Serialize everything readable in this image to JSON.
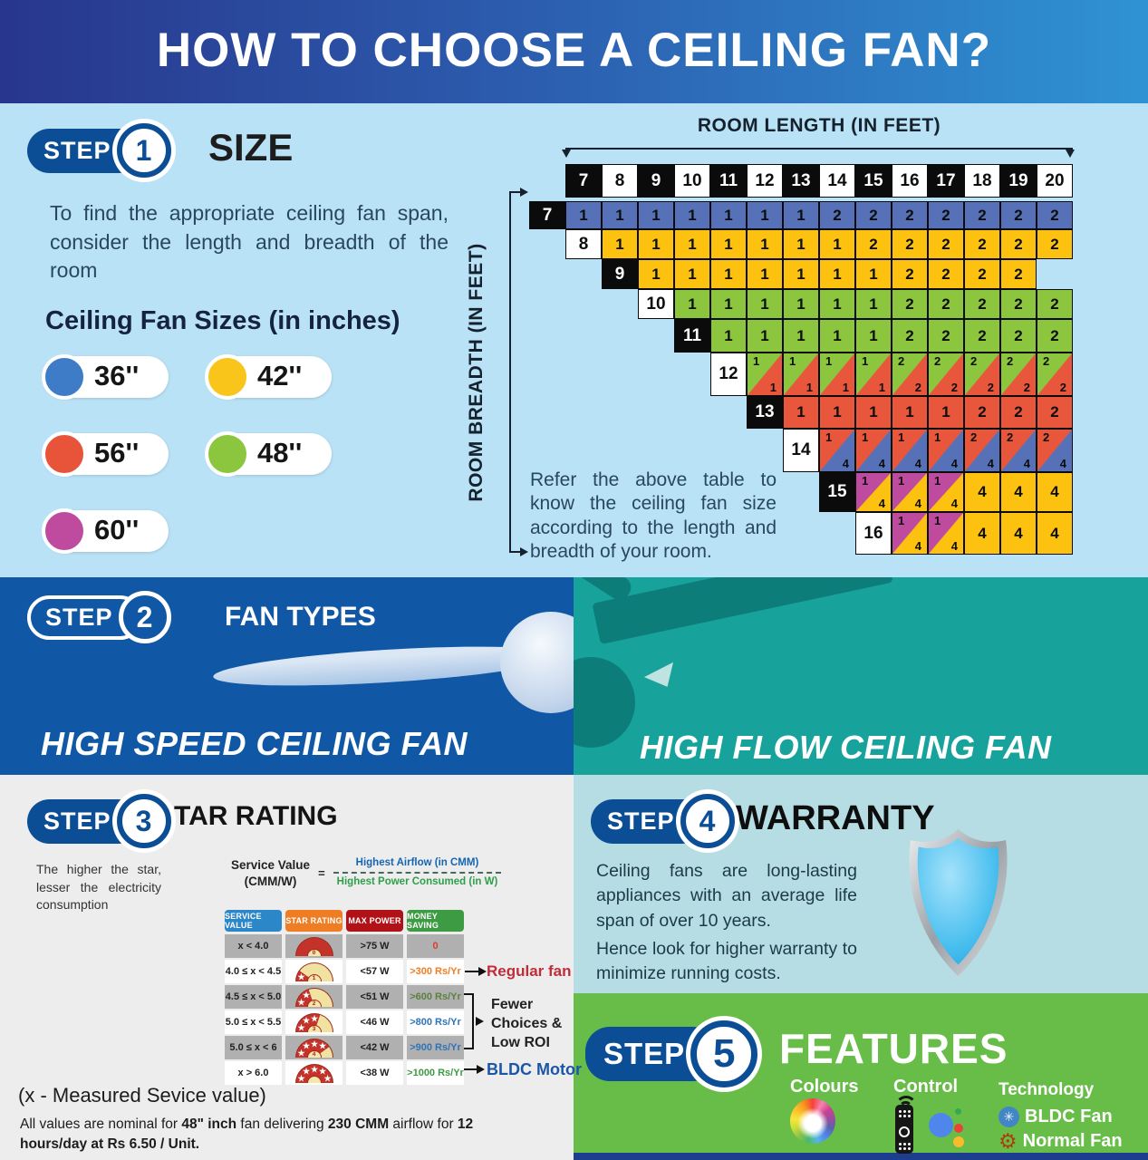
{
  "title": "HOW TO CHOOSE A CEILING FAN?",
  "palette": {
    "header_grad_left": "#28368c",
    "header_grad_right": "#2f93d3",
    "step1_bg": "#b9e2f6",
    "step2_left_bg": "#1057a5",
    "step2_right_bg": "#17a29b",
    "step3_bg": "#ededed",
    "step4_bg": "#b5dde3",
    "step5_bg": "#68bd48",
    "badge_blue": "#0c4e96",
    "bottom_strip": "#1d3e8f"
  },
  "fan_colors": {
    "b": "#5771b8",
    "y": "#fdc20f",
    "g": "#8cc63f",
    "r": "#e8573c",
    "m": "#bf4b9f"
  },
  "step1": {
    "step_label": "STEP",
    "step_number": "1",
    "heading": "SIZE",
    "description": "To find the appropriate ceiling fan span, consider the length and breadth of the room",
    "legend_title": "Ceiling Fan Sizes (in inches)",
    "fan_sizes": [
      {
        "label": "36''",
        "color": "#3e7cc7"
      },
      {
        "label": "42''",
        "color": "#f9c51b"
      },
      {
        "label": "56''",
        "color": "#e8543a"
      },
      {
        "label": "48''",
        "color": "#8cc63f"
      },
      {
        "label": "60''",
        "color": "#bf4b9f"
      }
    ],
    "table": {
      "x_axis_label": "ROOM LENGTH (IN FEET)",
      "y_axis_label": "ROOM BREADTH (IN FEET)",
      "columns": [
        "7",
        "8",
        "9",
        "10",
        "11",
        "12",
        "13",
        "14",
        "15",
        "16",
        "17",
        "18",
        "19",
        "20"
      ],
      "rows": [
        {
          "breadth": "7",
          "cells": [
            "1b",
            "1b",
            "1b",
            "1b",
            "1b",
            "1b",
            "1b",
            "2b",
            "2b",
            "2b",
            "2b",
            "2b",
            "2b",
            "2b"
          ]
        },
        {
          "breadth": "8",
          "cells": [
            "1y",
            "1y",
            "1y",
            "1y",
            "1y",
            "1y",
            "1y",
            "2y",
            "2y",
            "2y",
            "2y",
            "2y",
            "2y"
          ]
        },
        {
          "breadth": "9",
          "cells": [
            "1y",
            "1y",
            "1y",
            "1y",
            "1y",
            "1y",
            "1y",
            "2y",
            "2y",
            "2y",
            "2y"
          ]
        },
        {
          "breadth": "10",
          "cells": [
            "1g",
            "1g",
            "1g",
            "1g",
            "1g",
            "1g",
            "2g",
            "2g",
            "2g",
            "2g",
            "2g"
          ]
        },
        {
          "breadth": "11",
          "cells": [
            "1g",
            "1g",
            "1g",
            "1g",
            "1g",
            "2g",
            "2g",
            "2g",
            "2g",
            "2g"
          ]
        },
        {
          "breadth": "12",
          "cells": [
            "1g/1r",
            "1g/1r",
            "1g/1r",
            "1g/1r",
            "2g/2r",
            "2g/2r",
            "2g/2r",
            "2g/2r",
            "2g/2r"
          ]
        },
        {
          "breadth": "13",
          "cells": [
            "1r",
            "1r",
            "1r",
            "1r",
            "1r",
            "2r",
            "2r",
            "2r"
          ]
        },
        {
          "breadth": "14",
          "cells": [
            "1r/4b",
            "1r/4b",
            "1r/4b",
            "1r/4b",
            "2r/4b",
            "2r/4b",
            "2r/4b"
          ]
        },
        {
          "breadth": "15",
          "cells": [
            "1m/4y",
            "1m/4y",
            "1m/4y",
            "4y",
            "4y",
            "4y"
          ]
        },
        {
          "breadth": "16",
          "cells": [
            "1m/4y",
            "1m/4y",
            "4y",
            "4y",
            "4y"
          ]
        }
      ],
      "note": "Refer the above table to know the ceiling fan size according to the length and breadth of your room."
    }
  },
  "step2": {
    "step_label": "STEP",
    "step_number": "2",
    "heading": "FAN TYPES",
    "left_title": "HIGH SPEED CEILING FAN",
    "right_title": "HIGH FLOW CEILING FAN"
  },
  "step3": {
    "step_label": "STEP",
    "step_number": "3",
    "heading": "STAR RATING",
    "description": "The higher the star, lesser the electricity consumption",
    "formula": {
      "lhs_line1": "Service Value",
      "lhs_line2": "(CMM/W)",
      "equals": "=",
      "numerator": "Highest Airflow (in CMM)",
      "denominator": "Highest Power Consumed (in W)"
    },
    "star_glyph": "★",
    "table": {
      "headers": [
        {
          "label": "SERVICE VALUE",
          "color": "#2b87c8"
        },
        {
          "label": "STAR RATING",
          "color": "#ef7d23"
        },
        {
          "label": "MAX POWER",
          "color": "#b01218"
        },
        {
          "label": "MONEY SAVING",
          "color": "#3d9b43"
        }
      ],
      "rows": [
        {
          "service_value": "x < 4.0",
          "stars": 0,
          "max_power": ">75 W",
          "money_saving": "0",
          "saving_color": "#e03a2f"
        },
        {
          "service_value": "4.0 ≤ x < 4.5",
          "stars": 1,
          "max_power": "<57 W",
          "money_saving": ">300 Rs/Yr",
          "saving_color": "#ef7d23"
        },
        {
          "service_value": "4.5 ≤ x < 5.0",
          "stars": 2,
          "max_power": "<51 W",
          "money_saving": ">600 Rs/Yr",
          "saving_color": "#5c8040"
        },
        {
          "service_value": "5.0 ≤ x < 5.5",
          "stars": 3,
          "max_power": "<46 W",
          "money_saving": ">800 Rs/Yr",
          "saving_color": "#2e74b8"
        },
        {
          "service_value": "5.0 ≤ x < 6",
          "stars": 4,
          "max_power": "<42 W",
          "money_saving": ">900 Rs/Yr",
          "saving_color": "#2e74b8"
        },
        {
          "service_value": "x > 6.0",
          "stars": 5,
          "max_power": "<38 W",
          "money_saving": ">1000 Rs/Yr",
          "saving_color": "#3d9b43"
        }
      ]
    },
    "annotations": {
      "regular_fan": "Regular fan",
      "fewer": "Fewer\nChoices &\nLow ROI",
      "bldc": "BLDC Motor"
    },
    "footnote_x": "(x - Measured Sevice value)",
    "footnote_parts": [
      {
        "t": "All values are nominal for ",
        "b": false
      },
      {
        "t": "48\" inch",
        "b": true
      },
      {
        "t": " fan delivering ",
        "b": false
      },
      {
        "t": "230 CMM",
        "b": true
      },
      {
        "t": " airflow for ",
        "b": false
      },
      {
        "t": "12 hours/day at Rs 6.50 / Unit.",
        "b": true
      }
    ]
  },
  "step4": {
    "step_label": "STEP",
    "step_number": "4",
    "heading": "WARRANTY",
    "para1": "Ceiling fans are long-lasting appliances with an average life span of over 10 years.",
    "para2": "Hence look for higher warranty to minimize running costs."
  },
  "step5": {
    "step_label": "STEP",
    "step_number": "5",
    "heading": "FEATURES",
    "features": [
      {
        "label": "Colours"
      },
      {
        "label": "Control"
      },
      {
        "label": "Technology",
        "items": [
          "BLDC Fan",
          "Normal Fan"
        ]
      }
    ],
    "bldc_icon_glyph": "✳",
    "normal_icon_glyph": "⚙"
  }
}
